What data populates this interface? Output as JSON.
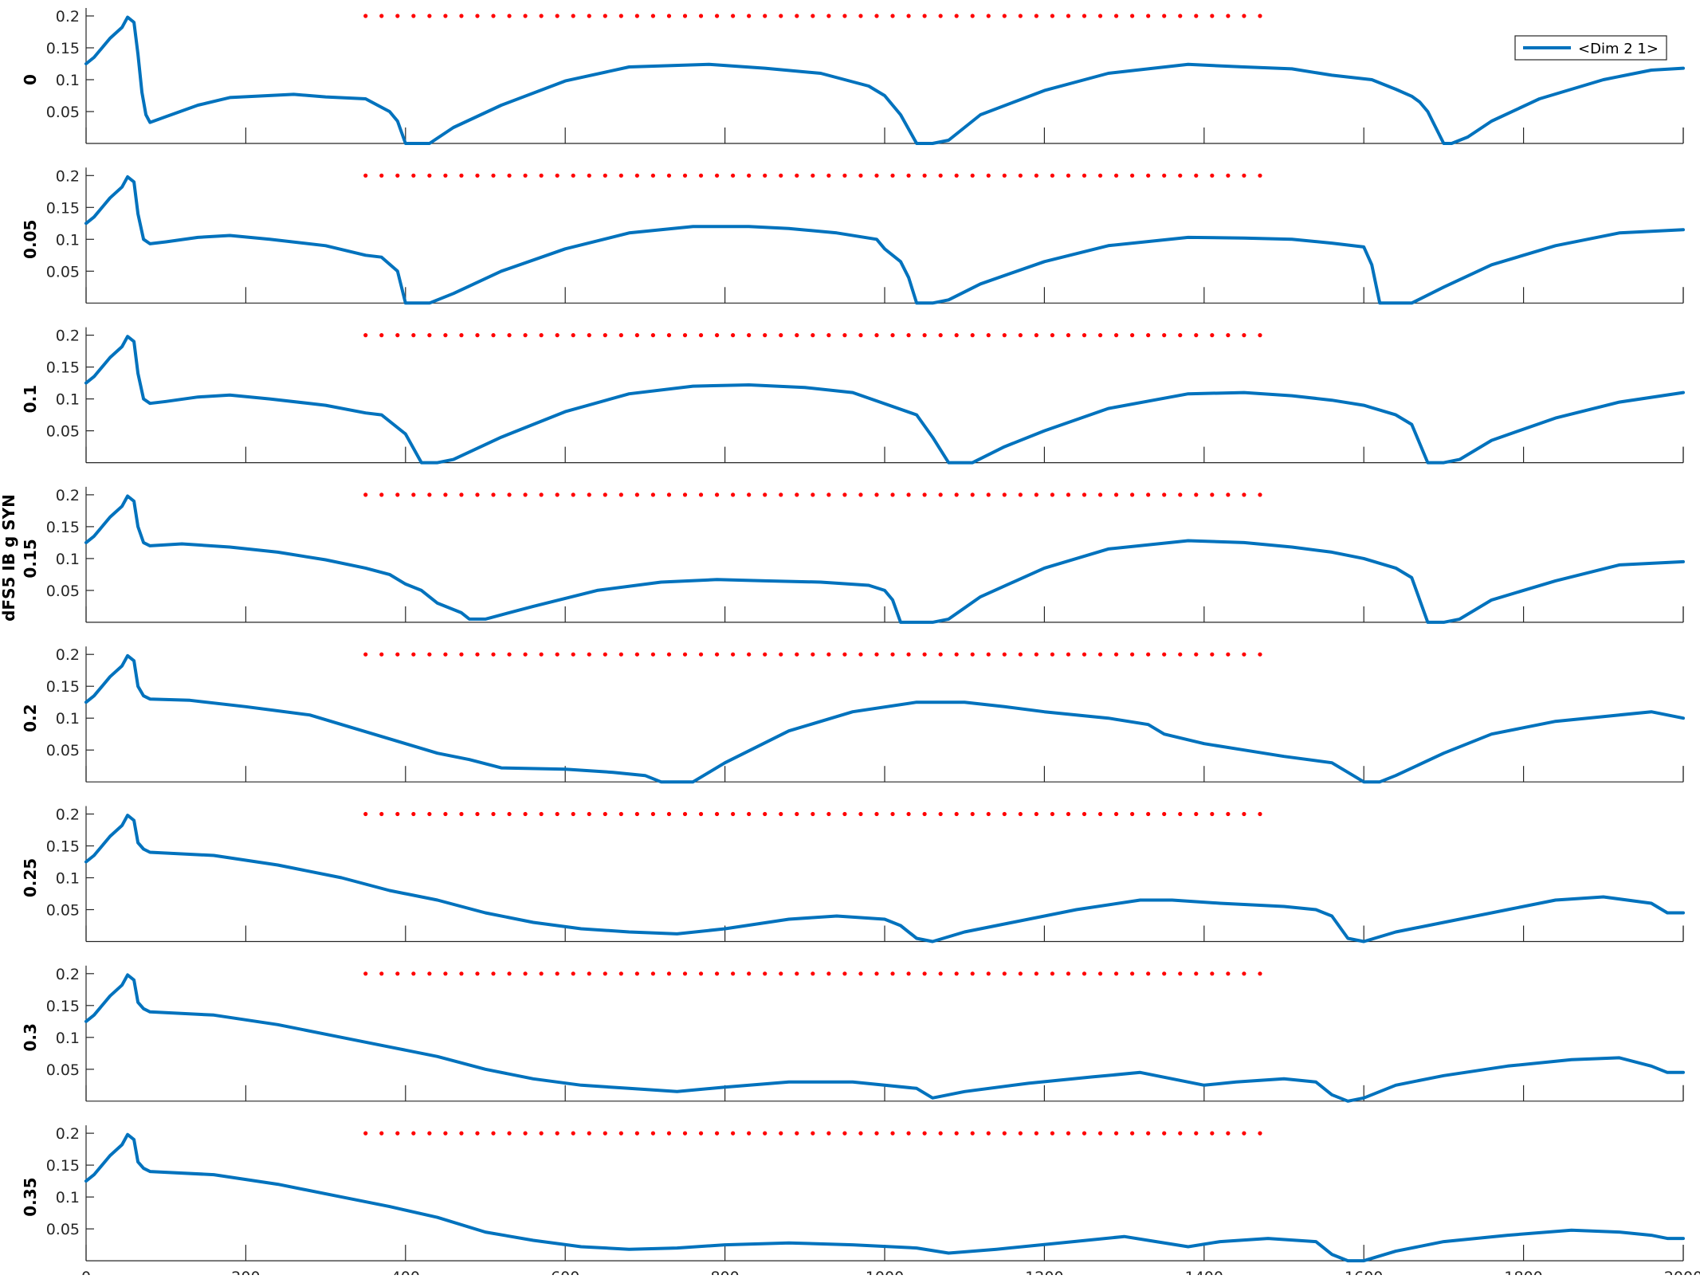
{
  "figure": {
    "shared_ylabel": "dFS5 IB g SYN",
    "legend_label": "<Dim 2 1>"
  },
  "colors": {
    "series_line": "#0072BD",
    "marker_dots": "#FF0000",
    "axis": "#262626",
    "background": "#FFFFFF"
  },
  "chart_data": {
    "type": "line",
    "xlim": [
      0,
      2000
    ],
    "ylim": [
      0,
      0.2
    ],
    "x_ticks": [
      "0",
      "200",
      "400",
      "600",
      "800",
      "1000",
      "1200",
      "1400",
      "1600",
      "1800",
      "2000"
    ],
    "y_ticks": [
      "0.05",
      "0.1",
      "0.15",
      "0.2"
    ],
    "grid": false,
    "legend_position": "top-right",
    "marker_series": {
      "y": 0.2,
      "x_start": 350,
      "x_end": 1480,
      "step": 20
    },
    "panels": [
      {
        "ylabel": "0",
        "x": [
          0,
          10,
          30,
          45,
          52,
          60,
          65,
          70,
          75,
          80,
          100,
          140,
          180,
          260,
          300,
          350,
          365,
          380,
          390,
          400,
          430,
          460,
          520,
          600,
          680,
          780,
          850,
          920,
          980,
          1000,
          1010,
          1020,
          1040,
          1060,
          1080,
          1120,
          1200,
          1280,
          1380,
          1450,
          1510,
          1560,
          1610,
          1640,
          1660,
          1670,
          1680,
          1700,
          1710,
          1730,
          1760,
          1820,
          1900,
          1960,
          2000
        ],
        "y": [
          0.125,
          0.135,
          0.165,
          0.182,
          0.198,
          0.19,
          0.14,
          0.08,
          0.045,
          0.033,
          0.042,
          0.06,
          0.072,
          0.077,
          0.073,
          0.07,
          0.06,
          0.05,
          0.035,
          0.0,
          0.0,
          0.025,
          0.06,
          0.098,
          0.12,
          0.124,
          0.118,
          0.11,
          0.09,
          0.075,
          0.06,
          0.045,
          0.0,
          0.0,
          0.005,
          0.045,
          0.083,
          0.11,
          0.124,
          0.12,
          0.117,
          0.107,
          0.1,
          0.085,
          0.074,
          0.065,
          0.05,
          0.0,
          0.0,
          0.01,
          0.035,
          0.07,
          0.1,
          0.115,
          0.118
        ]
      },
      {
        "ylabel": "0.05",
        "x": [
          0,
          10,
          30,
          45,
          52,
          60,
          65,
          72,
          80,
          100,
          140,
          180,
          230,
          300,
          350,
          370,
          390,
          400,
          410,
          430,
          460,
          520,
          600,
          680,
          760,
          830,
          880,
          940,
          990,
          1000,
          1020,
          1030,
          1040,
          1060,
          1080,
          1120,
          1200,
          1280,
          1380,
          1450,
          1510,
          1560,
          1600,
          1610,
          1620,
          1660,
          1700,
          1760,
          1840,
          1920,
          2000
        ],
        "y": [
          0.125,
          0.135,
          0.165,
          0.182,
          0.198,
          0.19,
          0.14,
          0.1,
          0.093,
          0.096,
          0.103,
          0.106,
          0.1,
          0.09,
          0.075,
          0.072,
          0.05,
          0.0,
          0.0,
          0.0,
          0.015,
          0.05,
          0.085,
          0.11,
          0.12,
          0.12,
          0.117,
          0.11,
          0.1,
          0.085,
          0.065,
          0.04,
          0.0,
          0.0,
          0.005,
          0.03,
          0.065,
          0.09,
          0.103,
          0.102,
          0.1,
          0.094,
          0.088,
          0.06,
          0.0,
          0.0,
          0.025,
          0.06,
          0.09,
          0.11,
          0.115
        ]
      },
      {
        "ylabel": "0.1",
        "x": [
          0,
          10,
          30,
          45,
          52,
          60,
          65,
          72,
          80,
          100,
          140,
          180,
          230,
          300,
          350,
          370,
          400,
          420,
          440,
          460,
          520,
          600,
          680,
          760,
          830,
          900,
          960,
          1040,
          1060,
          1080,
          1110,
          1150,
          1200,
          1280,
          1380,
          1450,
          1510,
          1560,
          1600,
          1640,
          1660,
          1680,
          1700,
          1720,
          1760,
          1840,
          1920,
          2000
        ],
        "y": [
          0.125,
          0.135,
          0.165,
          0.182,
          0.198,
          0.19,
          0.14,
          0.1,
          0.093,
          0.096,
          0.103,
          0.106,
          0.1,
          0.09,
          0.078,
          0.075,
          0.045,
          0.0,
          0.0,
          0.005,
          0.04,
          0.08,
          0.108,
          0.12,
          0.122,
          0.118,
          0.11,
          0.075,
          0.04,
          0.0,
          0.0,
          0.025,
          0.05,
          0.085,
          0.108,
          0.11,
          0.105,
          0.098,
          0.09,
          0.075,
          0.06,
          0.0,
          0.0,
          0.005,
          0.035,
          0.07,
          0.095,
          0.11
        ]
      },
      {
        "ylabel": "0.15",
        "x": [
          0,
          10,
          30,
          45,
          52,
          60,
          65,
          72,
          80,
          120,
          180,
          240,
          300,
          350,
          380,
          400,
          420,
          440,
          470,
          480,
          500,
          560,
          640,
          720,
          790,
          850,
          920,
          980,
          1000,
          1010,
          1020,
          1060,
          1080,
          1120,
          1200,
          1280,
          1380,
          1450,
          1510,
          1560,
          1600,
          1640,
          1660,
          1680,
          1700,
          1720,
          1760,
          1840,
          1920,
          2000
        ],
        "y": [
          0.125,
          0.135,
          0.165,
          0.182,
          0.198,
          0.19,
          0.15,
          0.125,
          0.12,
          0.123,
          0.118,
          0.11,
          0.098,
          0.085,
          0.075,
          0.06,
          0.05,
          0.03,
          0.015,
          0.005,
          0.005,
          0.025,
          0.05,
          0.063,
          0.067,
          0.065,
          0.063,
          0.058,
          0.05,
          0.035,
          0.0,
          0.0,
          0.005,
          0.04,
          0.085,
          0.115,
          0.128,
          0.125,
          0.118,
          0.11,
          0.1,
          0.085,
          0.07,
          0.0,
          0.0,
          0.005,
          0.035,
          0.065,
          0.09,
          0.095
        ]
      },
      {
        "ylabel": "0.2",
        "x": [
          0,
          10,
          30,
          45,
          52,
          60,
          65,
          72,
          80,
          130,
          200,
          280,
          320,
          360,
          400,
          440,
          480,
          520,
          600,
          660,
          700,
          720,
          750,
          760,
          800,
          880,
          960,
          1040,
          1100,
          1150,
          1200,
          1280,
          1330,
          1350,
          1400,
          1450,
          1500,
          1560,
          1580,
          1600,
          1620,
          1640,
          1700,
          1760,
          1840,
          1920,
          1960,
          2000
        ],
        "y": [
          0.125,
          0.135,
          0.165,
          0.182,
          0.198,
          0.19,
          0.15,
          0.135,
          0.13,
          0.128,
          0.118,
          0.105,
          0.09,
          0.075,
          0.06,
          0.045,
          0.035,
          0.022,
          0.02,
          0.015,
          0.01,
          0.0,
          0.0,
          0.0,
          0.03,
          0.08,
          0.11,
          0.125,
          0.125,
          0.118,
          0.11,
          0.1,
          0.09,
          0.075,
          0.06,
          0.05,
          0.04,
          0.03,
          0.015,
          0.0,
          0.0,
          0.01,
          0.045,
          0.075,
          0.095,
          0.105,
          0.11,
          0.1
        ]
      },
      {
        "ylabel": "0.25",
        "x": [
          0,
          10,
          30,
          45,
          52,
          60,
          65,
          72,
          80,
          160,
          240,
          320,
          380,
          440,
          500,
          560,
          620,
          680,
          740,
          800,
          880,
          940,
          1000,
          1020,
          1040,
          1060,
          1100,
          1160,
          1240,
          1320,
          1360,
          1420,
          1500,
          1540,
          1560,
          1580,
          1600,
          1640,
          1700,
          1780,
          1840,
          1900,
          1960,
          1980,
          2000
        ],
        "y": [
          0.125,
          0.135,
          0.165,
          0.182,
          0.198,
          0.19,
          0.155,
          0.145,
          0.14,
          0.135,
          0.12,
          0.1,
          0.08,
          0.065,
          0.045,
          0.03,
          0.02,
          0.015,
          0.012,
          0.02,
          0.035,
          0.04,
          0.035,
          0.025,
          0.005,
          0.0,
          0.015,
          0.03,
          0.05,
          0.065,
          0.065,
          0.06,
          0.055,
          0.05,
          0.04,
          0.005,
          0.0,
          0.015,
          0.03,
          0.05,
          0.065,
          0.07,
          0.06,
          0.045,
          0.045
        ]
      },
      {
        "ylabel": "0.3",
        "x": [
          0,
          10,
          30,
          45,
          52,
          60,
          65,
          72,
          80,
          160,
          240,
          320,
          380,
          440,
          500,
          560,
          620,
          680,
          740,
          800,
          880,
          960,
          1040,
          1060,
          1100,
          1180,
          1260,
          1320,
          1360,
          1400,
          1440,
          1500,
          1540,
          1560,
          1580,
          1600,
          1640,
          1700,
          1780,
          1860,
          1920,
          1960,
          1980,
          2000
        ],
        "y": [
          0.125,
          0.135,
          0.165,
          0.182,
          0.198,
          0.19,
          0.155,
          0.145,
          0.14,
          0.135,
          0.12,
          0.1,
          0.085,
          0.07,
          0.05,
          0.035,
          0.025,
          0.02,
          0.015,
          0.022,
          0.03,
          0.03,
          0.02,
          0.005,
          0.015,
          0.028,
          0.038,
          0.045,
          0.035,
          0.025,
          0.03,
          0.035,
          0.03,
          0.01,
          0.0,
          0.005,
          0.025,
          0.04,
          0.055,
          0.065,
          0.068,
          0.055,
          0.045,
          0.045
        ]
      },
      {
        "ylabel": "0.35",
        "x": [
          0,
          10,
          30,
          45,
          52,
          60,
          65,
          72,
          80,
          160,
          240,
          320,
          380,
          440,
          500,
          560,
          620,
          680,
          740,
          800,
          880,
          960,
          1040,
          1080,
          1140,
          1220,
          1300,
          1340,
          1380,
          1420,
          1480,
          1540,
          1560,
          1580,
          1600,
          1640,
          1700,
          1780,
          1860,
          1920,
          1960,
          1980,
          2000
        ],
        "y": [
          0.125,
          0.135,
          0.165,
          0.182,
          0.198,
          0.19,
          0.155,
          0.145,
          0.14,
          0.135,
          0.12,
          0.1,
          0.085,
          0.068,
          0.045,
          0.032,
          0.022,
          0.018,
          0.02,
          0.025,
          0.028,
          0.025,
          0.02,
          0.012,
          0.018,
          0.028,
          0.038,
          0.03,
          0.022,
          0.03,
          0.035,
          0.03,
          0.01,
          0.0,
          0.0,
          0.015,
          0.03,
          0.04,
          0.048,
          0.045,
          0.04,
          0.035,
          0.035
        ]
      }
    ]
  }
}
